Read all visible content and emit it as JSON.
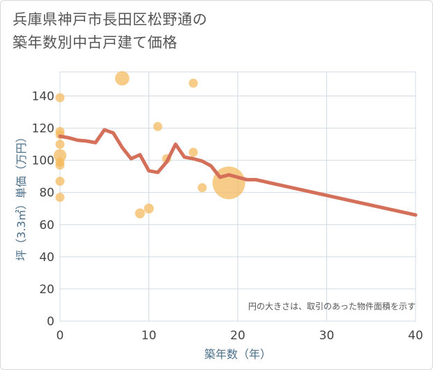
{
  "title_line1": "兵庫県神戸市長田区松野通の",
  "title_line2": "築年数別中古戸建て価格",
  "chart_data": {
    "type": "scatter+line",
    "title": "兵庫県神戸市長田区松野通の築年数別中古戸建て価格",
    "xlabel": "築年数（年）",
    "ylabel": "坪（3.3㎡）単価（万円）",
    "note": "円の大きさは、取引のあった物件面積を示す",
    "xlim": [
      0,
      40
    ],
    "ylim": [
      0,
      155
    ],
    "xticks": [
      0,
      10,
      20,
      30,
      40
    ],
    "yticks": [
      0,
      20,
      40,
      60,
      80,
      100,
      120,
      140
    ],
    "grid": true,
    "bubble_color": "#f4b95a",
    "line_color": "#d4705a",
    "bubbles": [
      {
        "x": 0,
        "y": 139,
        "size": 1
      },
      {
        "x": 0,
        "y": 118,
        "size": 1
      },
      {
        "x": 0,
        "y": 116,
        "size": 1
      },
      {
        "x": 0,
        "y": 110,
        "size": 1
      },
      {
        "x": 0,
        "y": 103,
        "size": 2
      },
      {
        "x": 0,
        "y": 99,
        "size": 1
      },
      {
        "x": 0,
        "y": 97,
        "size": 1
      },
      {
        "x": 0,
        "y": 87,
        "size": 1
      },
      {
        "x": 0,
        "y": 77,
        "size": 1
      },
      {
        "x": 7,
        "y": 151,
        "size": 2.5
      },
      {
        "x": 9,
        "y": 67,
        "size": 1.2
      },
      {
        "x": 10,
        "y": 70,
        "size": 1.2
      },
      {
        "x": 11,
        "y": 121,
        "size": 1
      },
      {
        "x": 12,
        "y": 101,
        "size": 1
      },
      {
        "x": 15,
        "y": 148,
        "size": 1
      },
      {
        "x": 15,
        "y": 105,
        "size": 1
      },
      {
        "x": 16,
        "y": 83,
        "size": 1
      },
      {
        "x": 19,
        "y": 86,
        "size": 13
      }
    ],
    "line": {
      "x": [
        0,
        1,
        2,
        3,
        4,
        5,
        6,
        7,
        8,
        9,
        10,
        11,
        12,
        13,
        14,
        15,
        16,
        17,
        18,
        19,
        20,
        21,
        22,
        40
      ],
      "y": [
        115,
        114,
        112.5,
        112,
        111,
        119,
        117,
        108,
        101,
        103.5,
        93.5,
        92.5,
        99,
        110,
        102,
        101,
        99.5,
        96.5,
        89.5,
        91,
        89.5,
        88,
        88,
        66
      ]
    }
  }
}
